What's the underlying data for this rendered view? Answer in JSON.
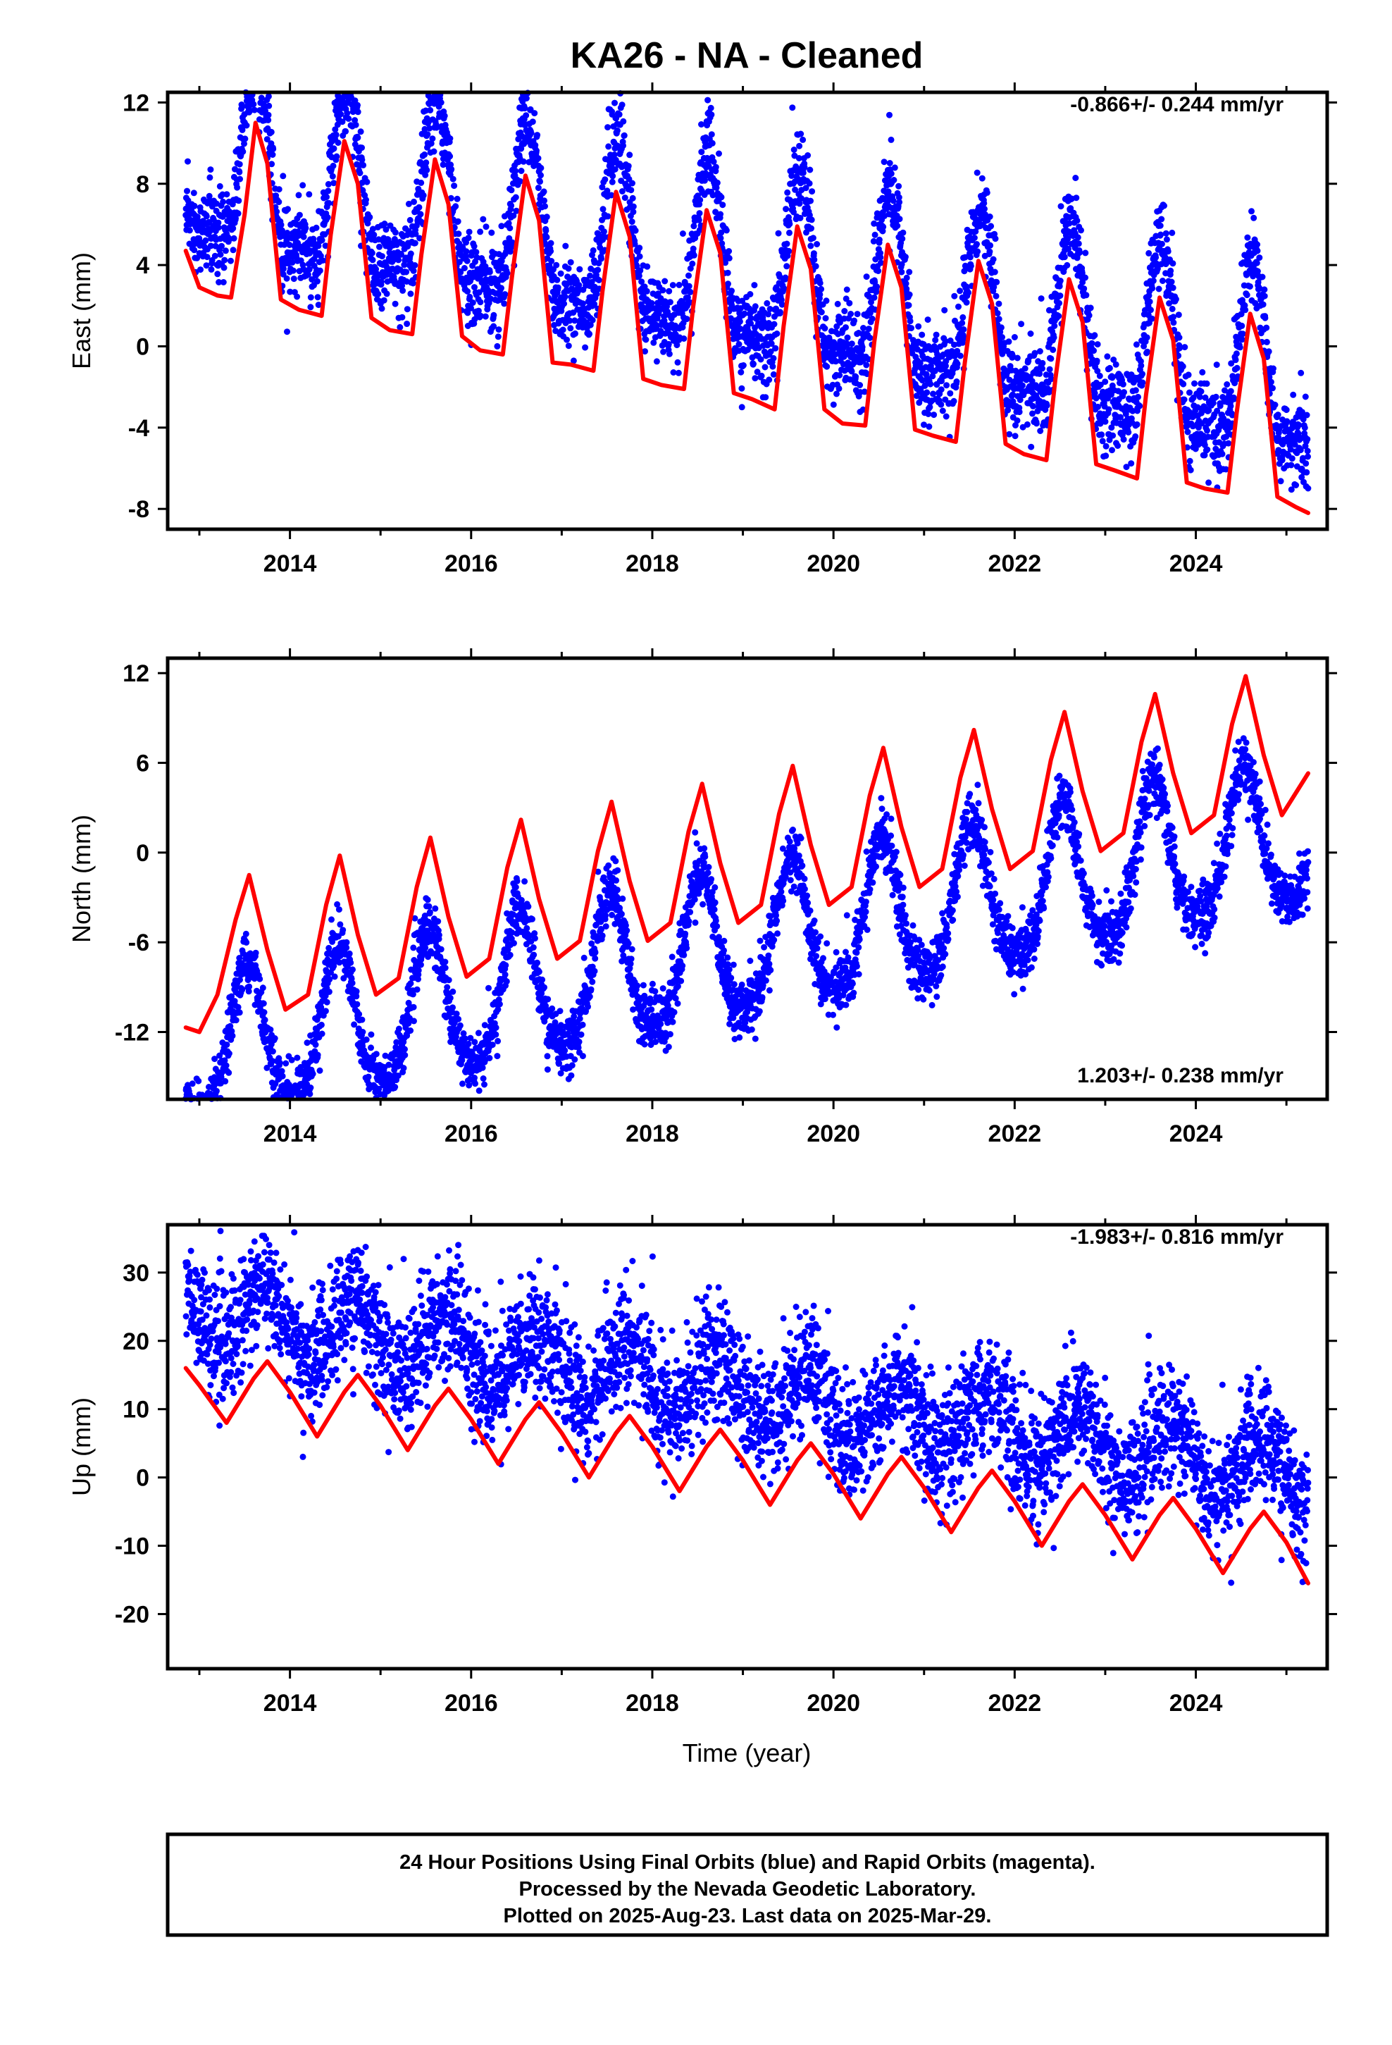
{
  "title": "KA26  - NA - Cleaned",
  "xlabel": "Time (year)",
  "x_tick_labels": [
    "2014",
    "2016",
    "2018",
    "2020",
    "2022",
    "2024"
  ],
  "footer": {
    "line1": "24 Hour Positions Using Final Orbits (blue) and Rapid Orbits (magenta).",
    "line2": "Processed by the Nevada Geodetic Laboratory.",
    "line3": "Plotted on 2025-Aug-23. Last data on 2025-Mar-29."
  },
  "colors": {
    "points": "#0000ff",
    "fit": "#ff0000",
    "frame": "#000000"
  },
  "chart_data": [
    {
      "type": "scatter",
      "component": "east",
      "ylabel": "East (mm)",
      "rate_label": "-0.866+/- 0.244 mm/yr",
      "rate_position": "top-right",
      "xlim": [
        2012.65,
        2025.45
      ],
      "ylim": [
        -9.0,
        12.5
      ],
      "yticks": [
        -8,
        -4,
        0,
        4,
        8,
        12
      ],
      "data_span": [
        2012.85,
        2025.24
      ],
      "model": {
        "offset": 3.35,
        "rate": -0.866,
        "annual_amp": 4.2,
        "annual_peak": 0.62,
        "semiannual_amp": 1.6,
        "semiannual_peak": 0.62,
        "noise_sd": 1.1
      },
      "fit_line": {
        "x": [
          2012.85,
          2013.0,
          2013.2,
          2013.35,
          2013.5,
          2013.62,
          2013.75,
          2013.9,
          2014.1,
          2014.35,
          2014.45,
          2014.6,
          2014.75,
          2014.9,
          2015.1,
          2015.35,
          2015.45,
          2015.6,
          2015.75,
          2015.9,
          2016.1,
          2016.35,
          2016.45,
          2016.6,
          2016.75,
          2016.9,
          2017.1,
          2017.35,
          2017.45,
          2017.6,
          2017.75,
          2017.9,
          2018.1,
          2018.35,
          2018.45,
          2018.6,
          2018.75,
          2018.9,
          2019.1,
          2019.35,
          2019.45,
          2019.6,
          2019.75,
          2019.9,
          2020.1,
          2020.35,
          2020.45,
          2020.6,
          2020.75,
          2020.9,
          2021.1,
          2021.35,
          2021.45,
          2021.6,
          2021.75,
          2021.9,
          2022.1,
          2022.35,
          2022.45,
          2022.6,
          2022.75,
          2022.9,
          2023.1,
          2023.35,
          2023.45,
          2023.6,
          2023.75,
          2023.9,
          2024.1,
          2024.35,
          2024.45,
          2024.6,
          2024.75,
          2024.9,
          2025.1,
          2025.24
        ],
        "y": [
          4.7,
          2.9,
          2.5,
          2.4,
          6.5,
          11.0,
          9.0,
          2.3,
          1.8,
          1.5,
          5.5,
          10.1,
          8.0,
          1.4,
          0.8,
          0.6,
          4.5,
          9.2,
          7.0,
          0.5,
          -0.2,
          -0.4,
          3.4,
          8.4,
          6.2,
          -0.8,
          -0.9,
          -1.2,
          2.7,
          7.6,
          5.4,
          -1.6,
          -1.9,
          -2.1,
          1.9,
          6.7,
          4.6,
          -2.3,
          -2.6,
          -3.1,
          1.0,
          5.9,
          3.8,
          -3.1,
          -3.8,
          -3.9,
          0.2,
          5.0,
          2.9,
          -4.1,
          -4.4,
          -4.7,
          -0.8,
          4.2,
          2.1,
          -4.8,
          -5.3,
          -5.6,
          -1.6,
          3.3,
          1.2,
          -5.8,
          -6.1,
          -6.5,
          -2.4,
          2.4,
          0.3,
          -6.7,
          -7.0,
          -7.2,
          -3.3,
          1.6,
          -0.6,
          -7.4,
          -7.9,
          -8.2
        ]
      }
    },
    {
      "type": "scatter",
      "component": "north",
      "ylabel": "North (mm)",
      "rate_label": "1.203+/- 0.238 mm/yr",
      "rate_position": "bottom-right",
      "xlim": [
        2012.65,
        2025.45
      ],
      "ylim": [
        -16.5,
        13.0
      ],
      "yticks": [
        -12,
        -6,
        0,
        6,
        12
      ],
      "data_span": [
        2012.85,
        2025.24
      ],
      "model": {
        "offset": -6.4,
        "rate": 1.203,
        "annual_amp": 4.8,
        "annual_peak": 0.53,
        "semiannual_amp": 0.8,
        "semiannual_peak": 0.53,
        "noise_sd": 1.0
      },
      "fit_line": {
        "x": [
          2012.85,
          2013.0,
          2013.2,
          2013.4,
          2013.55,
          2013.75,
          2013.95,
          2014.2,
          2014.4,
          2014.55,
          2014.75,
          2014.95,
          2015.2,
          2015.4,
          2015.55,
          2015.75,
          2015.95,
          2016.2,
          2016.4,
          2016.55,
          2016.75,
          2016.95,
          2017.2,
          2017.4,
          2017.55,
          2017.75,
          2017.95,
          2018.2,
          2018.4,
          2018.55,
          2018.75,
          2018.95,
          2019.2,
          2019.4,
          2019.55,
          2019.75,
          2019.95,
          2020.2,
          2020.4,
          2020.55,
          2020.75,
          2020.95,
          2021.2,
          2021.4,
          2021.55,
          2021.75,
          2021.95,
          2022.2,
          2022.4,
          2022.55,
          2022.75,
          2022.95,
          2023.2,
          2023.4,
          2023.55,
          2023.75,
          2023.95,
          2024.2,
          2024.4,
          2024.55,
          2024.75,
          2024.95,
          2025.24
        ],
        "y": [
          -11.7,
          -12.0,
          -9.5,
          -4.5,
          -1.5,
          -6.5,
          -10.5,
          -9.5,
          -3.5,
          -0.2,
          -5.5,
          -9.5,
          -8.4,
          -2.3,
          1.0,
          -4.3,
          -8.3,
          -7.1,
          -1.0,
          2.2,
          -3.1,
          -7.1,
          -5.9,
          0.1,
          3.4,
          -1.9,
          -5.9,
          -4.7,
          1.4,
          4.6,
          -0.7,
          -4.7,
          -3.5,
          2.6,
          5.8,
          0.5,
          -3.5,
          -2.3,
          3.8,
          7.0,
          1.7,
          -2.3,
          -1.1,
          5.0,
          8.2,
          2.9,
          -1.1,
          0.1,
          6.2,
          9.4,
          4.1,
          0.1,
          1.3,
          7.4,
          10.6,
          5.3,
          1.3,
          2.5,
          8.6,
          11.8,
          6.5,
          2.5,
          5.3
        ]
      }
    },
    {
      "type": "scatter",
      "component": "up",
      "ylabel": "Up (mm)",
      "rate_label": "-1.983+/- 0.816 mm/yr",
      "rate_position": "top-right",
      "xlim": [
        2012.65,
        2025.45
      ],
      "ylim": [
        -28.0,
        37.0
      ],
      "yticks": [
        -20,
        -10,
        0,
        10,
        20,
        30
      ],
      "data_span": [
        2012.85,
        2025.24
      ],
      "model": {
        "offset": 12.5,
        "rate": -1.983,
        "annual_amp": 4.7,
        "annual_peak": 0.72,
        "semiannual_amp": 0.0,
        "semiannual_peak": 0.72,
        "noise_sd": 4.4
      },
      "fit_line": {
        "x": [
          2012.85,
          2013.0,
          2013.3,
          2013.6,
          2013.75,
          2014.0,
          2014.3,
          2014.6,
          2014.75,
          2015.0,
          2015.3,
          2015.6,
          2015.75,
          2016.0,
          2016.3,
          2016.6,
          2016.75,
          2017.0,
          2017.3,
          2017.6,
          2017.75,
          2018.0,
          2018.3,
          2018.6,
          2018.75,
          2019.0,
          2019.3,
          2019.6,
          2019.75,
          2020.0,
          2020.3,
          2020.6,
          2020.75,
          2021.0,
          2021.3,
          2021.6,
          2021.75,
          2022.0,
          2022.3,
          2022.6,
          2022.75,
          2023.0,
          2023.3,
          2023.6,
          2023.75,
          2024.0,
          2024.3,
          2024.6,
          2024.75,
          2025.0,
          2025.24
        ],
        "y": [
          16.0,
          13.5,
          8.0,
          14.5,
          17.0,
          12.5,
          6.0,
          12.5,
          15.0,
          10.5,
          4.0,
          10.5,
          13.0,
          8.5,
          2.0,
          8.5,
          11.0,
          6.5,
          0.0,
          6.5,
          9.0,
          4.5,
          -2.0,
          4.5,
          7.0,
          2.5,
          -4.0,
          2.5,
          5.0,
          0.5,
          -6.0,
          0.5,
          3.0,
          -1.5,
          -8.0,
          -1.5,
          1.0,
          -3.5,
          -10.0,
          -3.5,
          -1.0,
          -5.5,
          -12.0,
          -5.5,
          -3.0,
          -7.5,
          -14.0,
          -7.5,
          -5.0,
          -9.5,
          -15.5
        ]
      }
    }
  ]
}
